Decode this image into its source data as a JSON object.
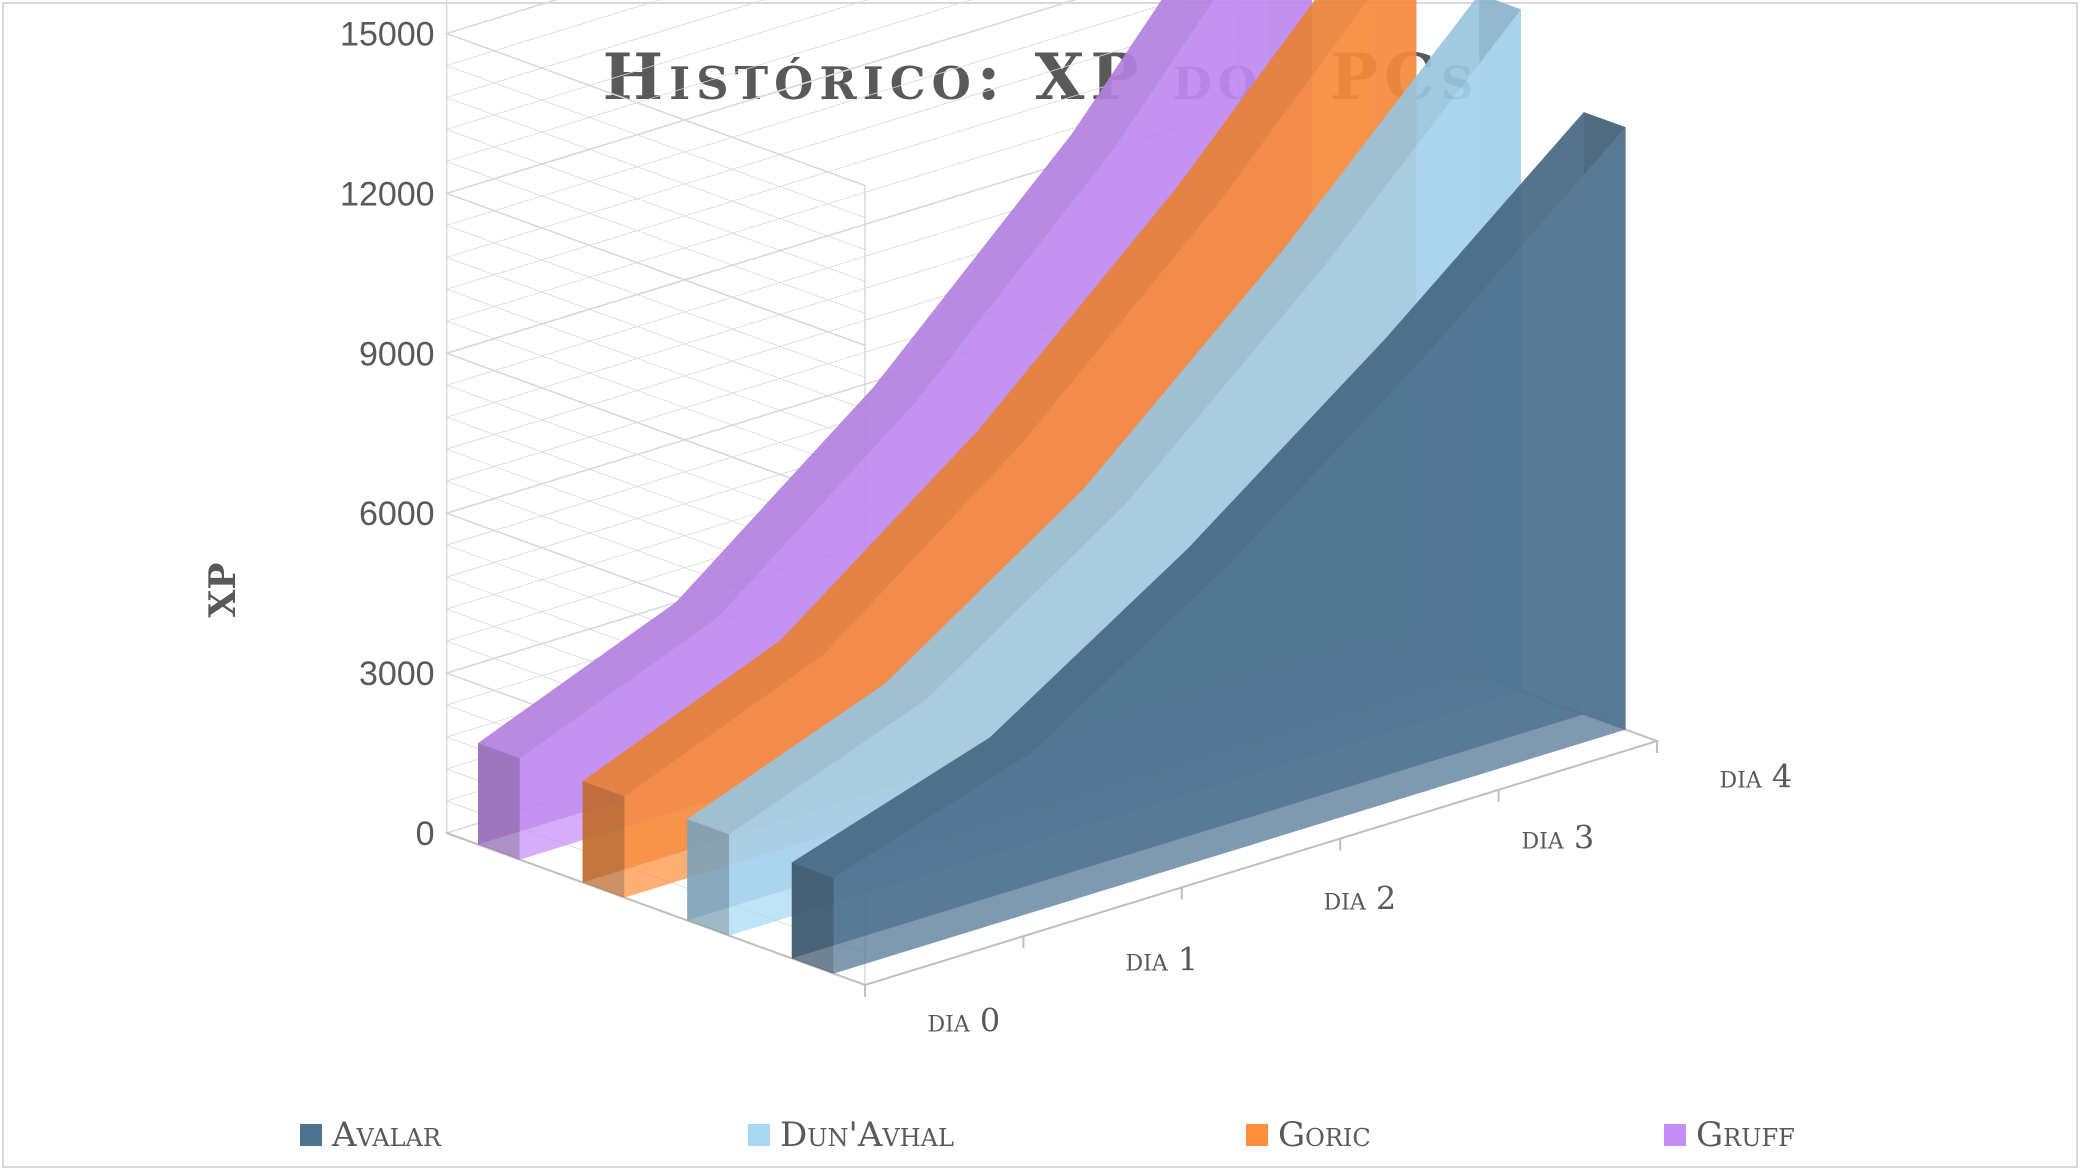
{
  "chart_data": {
    "type": "area",
    "title": "Histórico: XP dos PCs",
    "xlabel": "",
    "ylabel": "XP",
    "categories": [
      "dia 0",
      "dia 1",
      "dia 2",
      "dia 3",
      "dia 4"
    ],
    "yticks": [
      "0",
      "3000",
      "6000",
      "9000",
      "12000",
      "15000"
    ],
    "ylim": [
      0,
      15000
    ],
    "grid": true,
    "three_d": true,
    "legend": "bottom",
    "series": [
      {
        "name": "Avalar",
        "values": [
          1800,
          3000,
          5400,
          8200,
          11300
        ],
        "color": "#4e7391"
      },
      {
        "name": "Dun'Avhal",
        "values": [
          1900,
          3300,
          5800,
          9100,
          12800
        ],
        "color": "#a9d8f5"
      },
      {
        "name": "Goric",
        "values": [
          1900,
          3400,
          6200,
          9600,
          13500
        ],
        "color": "#ff8f3e"
      },
      {
        "name": "Gruff",
        "values": [
          1900,
          3400,
          6300,
          9900,
          14300
        ],
        "color": "#c58df7"
      }
    ]
  }
}
